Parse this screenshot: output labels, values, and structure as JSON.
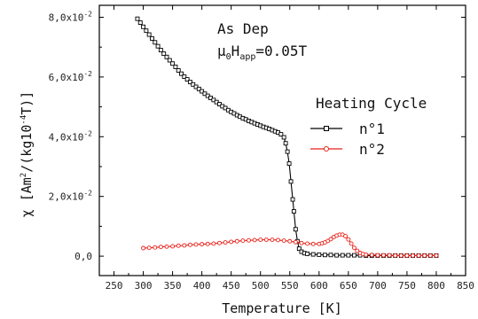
{
  "chart_data": {
    "type": "line",
    "xlabel": "Temperature [K]",
    "ylabel": {
      "chi": "χ",
      "open": "[Am",
      "sq": "2",
      "mid": "/(kg10",
      "exp": "-4",
      "close": "T)]"
    },
    "xlim": [
      225,
      850
    ],
    "ylim": [
      -0.0065,
      0.084
    ],
    "x_ticks": [
      "250",
      "300",
      "350",
      "400",
      "450",
      "500",
      "550",
      "600",
      "650",
      "700",
      "750",
      "800",
      "850"
    ],
    "y_ticks": [
      {
        "value": 0,
        "mant": "0,0",
        "exp": ""
      },
      {
        "value": 0.02,
        "mant": "2,0x10",
        "exp": "-2"
      },
      {
        "value": 0.04,
        "mant": "4,0x10",
        "exp": "-2"
      },
      {
        "value": 0.06,
        "mant": "6,0x10",
        "exp": "-2"
      },
      {
        "value": 0.08,
        "mant": "8,0x10",
        "exp": "-2"
      }
    ],
    "annotation": {
      "line1": "As Dep",
      "mu": "μ",
      "sub0": "0",
      "H": "H",
      "subapp": "app",
      "field": "=0.05T"
    },
    "legend": {
      "title": "Heating Cycle",
      "placement": "right"
    },
    "series": [
      {
        "name": "n°1",
        "color": "#000000",
        "marker": "square",
        "x": [
          290,
          295,
          300,
          305,
          310,
          315,
          320,
          325,
          330,
          335,
          340,
          345,
          350,
          355,
          360,
          365,
          370,
          375,
          380,
          385,
          390,
          395,
          400,
          405,
          410,
          415,
          420,
          425,
          430,
          435,
          440,
          445,
          450,
          455,
          460,
          465,
          470,
          475,
          480,
          485,
          490,
          495,
          500,
          505,
          510,
          515,
          520,
          525,
          530,
          535,
          540,
          543,
          546,
          549,
          552,
          555,
          557,
          560,
          563,
          566,
          570,
          575,
          580,
          590,
          600,
          610,
          620,
          630,
          640,
          650,
          660,
          670,
          680,
          690,
          700,
          710,
          720,
          730,
          740,
          750,
          760,
          770,
          780,
          790,
          800
        ],
        "y": [
          0.0795,
          0.0782,
          0.0768,
          0.0755,
          0.0742,
          0.0729,
          0.0716,
          0.0703,
          0.069,
          0.0678,
          0.0667,
          0.0656,
          0.0645,
          0.0634,
          0.0622,
          0.0611,
          0.0601,
          0.0592,
          0.0583,
          0.0575,
          0.0567,
          0.056,
          0.0552,
          0.0544,
          0.0537,
          0.053,
          0.0523,
          0.0516,
          0.0509,
          0.0502,
          0.0496,
          0.0489,
          0.0483,
          0.0478,
          0.0472,
          0.0467,
          0.0462,
          0.0458,
          0.0453,
          0.0449,
          0.0445,
          0.0441,
          0.0437,
          0.0433,
          0.043,
          0.0426,
          0.0422,
          0.0418,
          0.0414,
          0.0408,
          0.0398,
          0.0378,
          0.035,
          0.031,
          0.025,
          0.019,
          0.015,
          0.009,
          0.005,
          0.0025,
          0.0015,
          0.001,
          0.0008,
          0.0006,
          0.0005,
          0.0004,
          0.0004,
          0.0003,
          0.0003,
          0.0003,
          0.0003,
          0.0003,
          0.0002,
          0.0002,
          0.0002,
          0.0002,
          0.0002,
          0.0002,
          0.0002,
          0.0002,
          0.0002,
          0.0002,
          0.0002,
          0.0002,
          0.0002
        ]
      },
      {
        "name": "n°2",
        "color": "#e8221a",
        "marker": "circle",
        "x": [
          300,
          310,
          320,
          330,
          340,
          350,
          360,
          370,
          380,
          390,
          400,
          410,
          420,
          430,
          440,
          450,
          460,
          470,
          480,
          490,
          500,
          510,
          520,
          530,
          540,
          550,
          560,
          570,
          580,
          590,
          600,
          605,
          610,
          615,
          620,
          625,
          630,
          635,
          640,
          645,
          650,
          655,
          660,
          665,
          670,
          675,
          680,
          690,
          700,
          710,
          720,
          730,
          740,
          750,
          760,
          770,
          780,
          790,
          800
        ],
        "y": [
          0.0027,
          0.0028,
          0.0029,
          0.0031,
          0.0032,
          0.0033,
          0.0035,
          0.0036,
          0.0038,
          0.0039,
          0.004,
          0.0041,
          0.0042,
          0.0044,
          0.0046,
          0.0048,
          0.005,
          0.0052,
          0.0053,
          0.0054,
          0.0055,
          0.0055,
          0.0055,
          0.0054,
          0.0052,
          0.005,
          0.0047,
          0.0044,
          0.0042,
          0.0041,
          0.0041,
          0.0043,
          0.0046,
          0.0051,
          0.0057,
          0.0064,
          0.0069,
          0.0072,
          0.0072,
          0.0067,
          0.0056,
          0.0042,
          0.0028,
          0.0018,
          0.0011,
          0.0007,
          0.0005,
          0.0004,
          0.0003,
          0.0003,
          0.0003,
          0.0002,
          0.0002,
          0.0002,
          0.0002,
          0.0002,
          0.0002,
          0.0002,
          0.0002
        ]
      }
    ]
  }
}
